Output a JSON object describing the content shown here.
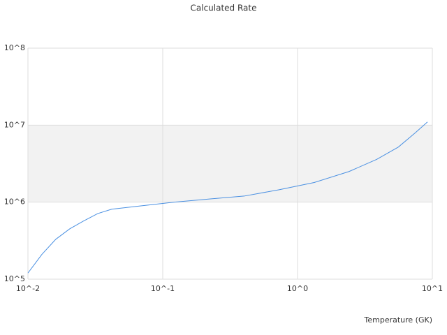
{
  "chart_data": {
    "type": "line",
    "title": "Calculated Rate",
    "x_label": "Temperature (GK)",
    "xscale": "log",
    "yscale": "log",
    "grid": true,
    "alternating_bands": true,
    "color": "#4a90e2",
    "xlim": [
      0.01,
      10
    ],
    "ylim": [
      100000,
      100000000
    ],
    "xticks": [
      {
        "value": 0.01,
        "label": "10^-2"
      },
      {
        "value": 0.1,
        "label": "10^-1"
      },
      {
        "value": 1,
        "label": "10^0"
      },
      {
        "value": 10,
        "label": "10^1"
      }
    ],
    "yticks": [
      {
        "value": 100000,
        "label": "10^5"
      },
      {
        "value": 1000000,
        "label": "10^6"
      },
      {
        "value": 10000000,
        "label": "10^7"
      },
      {
        "value": 100000000,
        "label": "10^8"
      }
    ],
    "x": [
      0.01,
      0.0127,
      0.0161,
      0.0204,
      0.0259,
      0.0329,
      0.0418,
      0.0635,
      0.122,
      0.222,
      0.402,
      0.73,
      1.33,
      2.41,
      3.87,
      5.6,
      7.5,
      9.2
    ],
    "values": [
      120000,
      210000,
      330000,
      450000,
      570000,
      710000,
      810000,
      880000,
      1000000,
      1100000,
      1200000,
      1450000,
      1800000,
      2500000,
      3600000,
      5200000,
      8000000,
      11000000
    ]
  }
}
